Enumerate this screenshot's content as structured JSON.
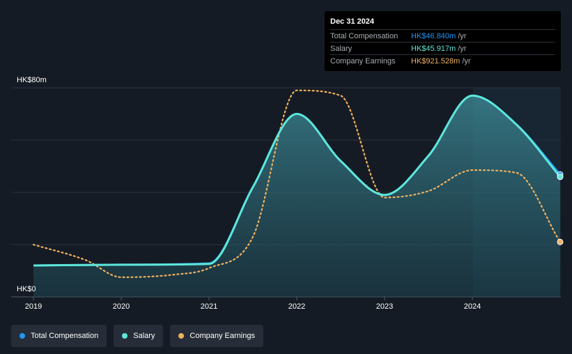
{
  "tooltip": {
    "date": "Dec 31 2024",
    "rows": [
      {
        "label": "Total Compensation",
        "value": "HK$46.840m",
        "unit": "/yr",
        "color": "#2196f3"
      },
      {
        "label": "Salary",
        "value": "HK$45.917m",
        "unit": "/yr",
        "color": "#5ee6d8"
      },
      {
        "label": "Company Earnings",
        "value": "HK$921.528m",
        "unit": "/yr",
        "color": "#f0b15e"
      }
    ]
  },
  "legend": [
    {
      "label": "Total Compensation",
      "color": "#2196f3"
    },
    {
      "label": "Salary",
      "color": "#5ee6d8"
    },
    {
      "label": "Company Earnings",
      "color": "#f0b15e"
    }
  ],
  "chart_data": {
    "type": "line",
    "ylim": [
      0,
      80
    ],
    "y_tick_labels": [
      "HK$0",
      "HK$80m"
    ],
    "x_tick_labels": [
      "2019",
      "2020",
      "2021",
      "2022",
      "2023",
      "2024"
    ],
    "xlim": [
      2019,
      2025.0
    ],
    "grid": true,
    "legend_position": "bottom-left",
    "series": [
      {
        "name": "Total Compensation",
        "color": "#2196f3",
        "points": [
          [
            2019.0,
            12
          ],
          [
            2020.0,
            12.3
          ],
          [
            2021.0,
            12.8
          ],
          [
            2021.5,
            42
          ],
          [
            2022.0,
            70
          ],
          [
            2022.5,
            52
          ],
          [
            2023.0,
            39
          ],
          [
            2023.5,
            54
          ],
          [
            2024.0,
            77
          ],
          [
            2024.5,
            66
          ],
          [
            2025.0,
            46.84
          ]
        ]
      },
      {
        "name": "Salary",
        "color": "#5ee6d8",
        "points": [
          [
            2019.0,
            12
          ],
          [
            2020.0,
            12.3
          ],
          [
            2021.0,
            12.6
          ],
          [
            2021.5,
            42
          ],
          [
            2022.0,
            70
          ],
          [
            2022.5,
            52
          ],
          [
            2023.0,
            39
          ],
          [
            2023.5,
            54
          ],
          [
            2024.0,
            77
          ],
          [
            2024.5,
            66
          ],
          [
            2025.0,
            45.917
          ]
        ]
      },
      {
        "name": "Company Earnings",
        "color": "#f0b15e",
        "points": [
          [
            2019.0,
            20
          ],
          [
            2019.6,
            14
          ],
          [
            2020.0,
            7.5
          ],
          [
            2020.6,
            8.5
          ],
          [
            2021.0,
            11
          ],
          [
            2021.5,
            23
          ],
          [
            2022.0,
            79
          ],
          [
            2022.5,
            77
          ],
          [
            2023.0,
            38
          ],
          [
            2023.5,
            40.5
          ],
          [
            2024.0,
            48.5
          ],
          [
            2024.5,
            47.5
          ],
          [
            2025.0,
            21
          ]
        ]
      }
    ]
  }
}
